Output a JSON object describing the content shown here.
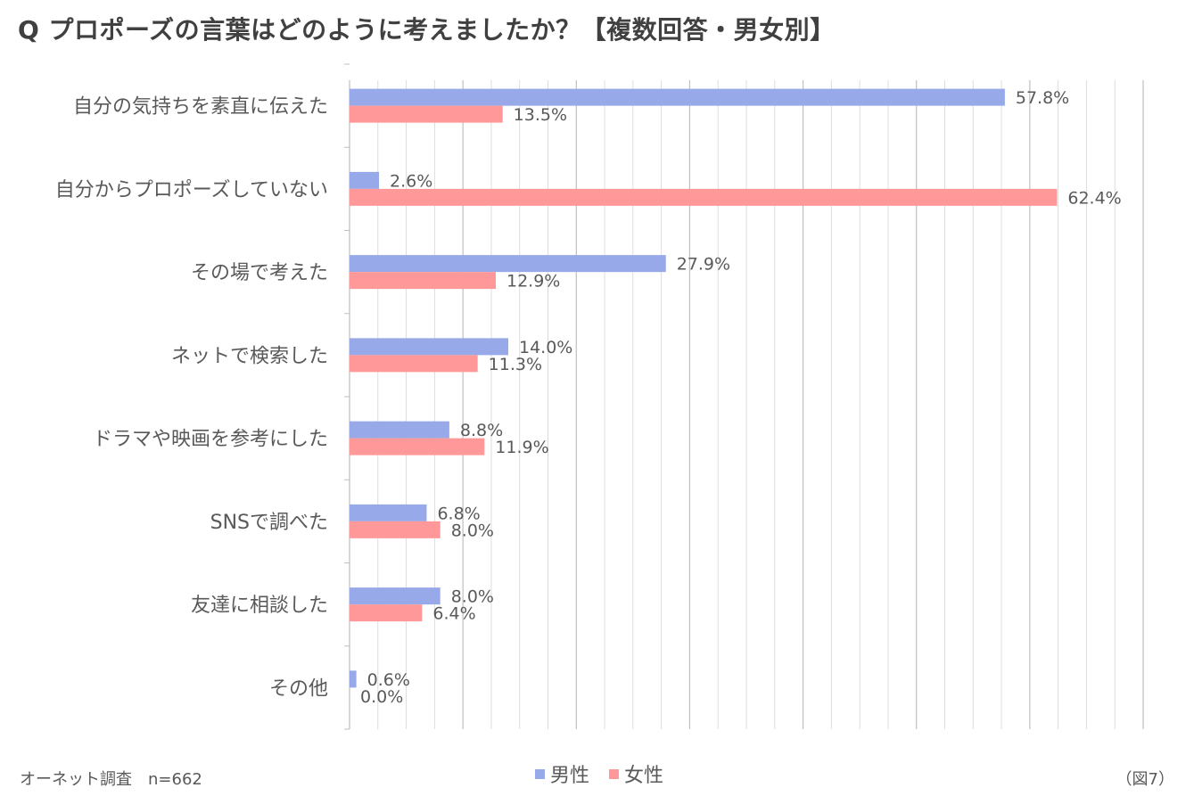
{
  "title": "Q プロポーズの言葉はどのように考えましたか？【複数回答・男女別】",
  "footer": {
    "source": "オーネット調査　n=662",
    "figure_label": "（図7）"
  },
  "colors": {
    "male": "#97a9e8",
    "female": "#ff9999",
    "grid": "#d9d9d9",
    "axis": "#bfbfbf",
    "text": "#595959"
  },
  "chart_data": {
    "type": "bar",
    "orientation": "horizontal",
    "categories": [
      "自分の気持ちを素直に伝えた",
      "自分からプロポーズしていない",
      "その場で考えた",
      "ネットで検索した",
      "ドラマや映画を参考にした",
      "SNSで調べた",
      "友達に相談した",
      "その他"
    ],
    "series": [
      {
        "name": "男性",
        "values": [
          57.8,
          2.6,
          27.9,
          14.0,
          8.8,
          6.8,
          8.0,
          0.6
        ],
        "labels": [
          "57.8%",
          "2.6%",
          "27.9%",
          "14.0%",
          "8.8%",
          "6.8%",
          "8.0%",
          "0.6%"
        ]
      },
      {
        "name": "女性",
        "values": [
          13.5,
          62.4,
          12.9,
          11.3,
          11.9,
          8.0,
          6.4,
          0.0
        ],
        "labels": [
          "13.5%",
          "62.4%",
          "12.9%",
          "11.3%",
          "11.9%",
          "8.0%",
          "6.4%",
          "0.0%"
        ]
      }
    ],
    "xlim": [
      0,
      70
    ],
    "grid": true,
    "legend_position": "bottom"
  }
}
